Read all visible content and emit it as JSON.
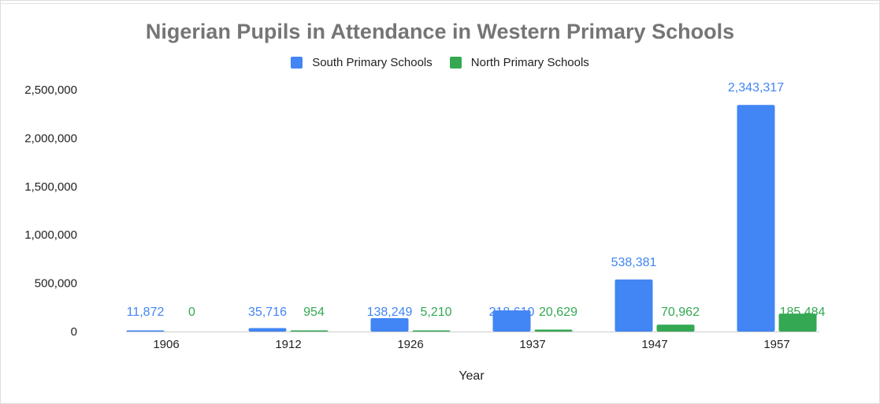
{
  "chart_data": {
    "type": "bar",
    "title": "Nigerian Pupils in Attendance in Western Primary Schools",
    "xlabel": "Year",
    "ylabel": "",
    "categories": [
      "1906",
      "1912",
      "1926",
      "1937",
      "1947",
      "1957"
    ],
    "series": [
      {
        "name": "South Primary Schools",
        "color": "#4285f4",
        "values": [
          11872,
          35716,
          138249,
          218610,
          538381,
          2343317
        ],
        "labels": [
          "11,872",
          "35,716",
          "138,249",
          "218,610",
          "538,381",
          "2,343,317"
        ]
      },
      {
        "name": "North Primary Schools",
        "color": "#34a853",
        "values": [
          0,
          954,
          5210,
          20629,
          70962,
          185484
        ],
        "labels": [
          "0",
          "954",
          "5,210",
          "20,629",
          "70,962",
          "185,484"
        ]
      }
    ],
    "y_ticks": [
      0,
      500000,
      1000000,
      1500000,
      2000000,
      2500000
    ],
    "y_tick_labels": [
      "0",
      "500,000",
      "1,000,000",
      "1,500,000",
      "2,000,000",
      "2,500,000"
    ],
    "ylim": [
      0,
      2500000
    ],
    "grid": false,
    "legend_position": "top"
  }
}
